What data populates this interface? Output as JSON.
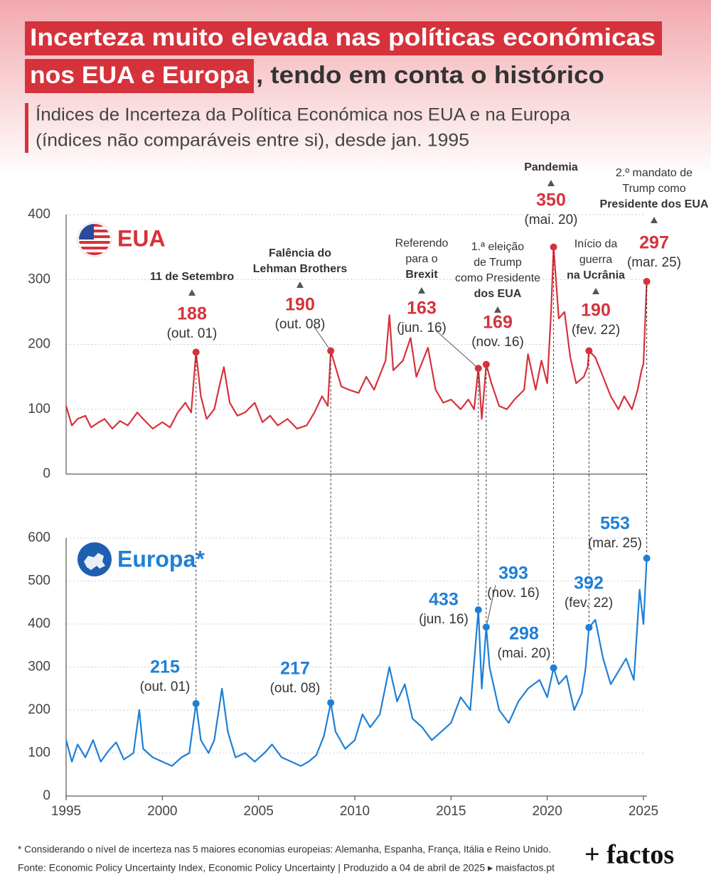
{
  "title": [
    "Incerteza muito elevada nas políticas económicas",
    "nos EUA e Europa",
    ", tendo em conta o histórico"
  ],
  "subtitle": [
    "Índices de Incerteza da Política Económica nos EUA e na Europa",
    "(índices não comparáveis entre si), desde jan. 1995"
  ],
  "footnote": "* Considerando o nível de incerteza nas 5 maiores economias europeias: Alemanha, Espanha, França, Itália e Reino Unido.",
  "source": "Fonte: Economic Policy Uncertainty Index, Economic Policy Uncertainty | Produzido a 04 de abril de 2025 ▸ maisfactos.pt",
  "logo": "+ factos",
  "chart_data": [
    {
      "type": "line",
      "title": "EUA",
      "xlim": [
        1995,
        2025
      ],
      "ylim": [
        0,
        400
      ],
      "yticks": [
        0,
        100,
        200,
        300,
        400
      ],
      "grid": true,
      "x": [
        1995.0,
        1995.3,
        1995.6,
        1996.0,
        1996.3,
        1996.7,
        1997.0,
        1997.4,
        1997.8,
        1998.2,
        1998.7,
        1999.0,
        1999.5,
        2000.0,
        2000.4,
        2000.8,
        2001.2,
        2001.5,
        2001.75,
        2002.0,
        2002.3,
        2002.7,
        2003.0,
        2003.2,
        2003.5,
        2003.9,
        2004.3,
        2004.8,
        2005.2,
        2005.6,
        2006.0,
        2006.5,
        2007.0,
        2007.5,
        2007.9,
        2008.3,
        2008.6,
        2008.75,
        2009.0,
        2009.3,
        2009.7,
        2010.2,
        2010.6,
        2011.0,
        2011.6,
        2011.8,
        2012.0,
        2012.5,
        2012.9,
        2013.2,
        2013.8,
        2014.2,
        2014.6,
        2015.0,
        2015.5,
        2015.9,
        2016.2,
        2016.42,
        2016.6,
        2016.83,
        2017.1,
        2017.5,
        2017.9,
        2018.3,
        2018.8,
        2019.0,
        2019.4,
        2019.7,
        2020.0,
        2020.2,
        2020.33,
        2020.6,
        2020.9,
        2021.2,
        2021.5,
        2021.9,
        2022.1,
        2022.17,
        2022.5,
        2022.9,
        2023.3,
        2023.7,
        2024.0,
        2024.4,
        2024.7,
        2024.9,
        2025.0,
        2025.17
      ],
      "series": [
        {
          "name": "EUA",
          "color": "#d6323c",
          "values": [
            105,
            75,
            85,
            90,
            72,
            80,
            85,
            70,
            82,
            75,
            95,
            85,
            70,
            80,
            72,
            95,
            110,
            95,
            188,
            120,
            85,
            100,
            140,
            165,
            110,
            90,
            95,
            110,
            80,
            90,
            75,
            85,
            70,
            75,
            95,
            120,
            105,
            190,
            165,
            135,
            130,
            125,
            150,
            130,
            175,
            245,
            160,
            175,
            210,
            150,
            195,
            130,
            110,
            115,
            100,
            115,
            100,
            163,
            85,
            169,
            140,
            105,
            100,
            115,
            130,
            185,
            130,
            175,
            140,
            250,
            350,
            240,
            250,
            180,
            140,
            150,
            165,
            190,
            180,
            150,
            120,
            100,
            120,
            100,
            130,
            160,
            170,
            297
          ]
        }
      ],
      "annotations": [
        {
          "x": 2001.75,
          "value": 188,
          "date": "(out. 01)",
          "event": [
            "11 de Setembro"
          ]
        },
        {
          "x": 2008.75,
          "value": 190,
          "date": "(out. 08)",
          "event": [
            "Falência do",
            "Lehman Brothers"
          ]
        },
        {
          "x": 2016.42,
          "value": 163,
          "date": "(jun. 16)",
          "event": [
            "Referendo",
            "para o",
            "Brexit"
          ]
        },
        {
          "x": 2016.83,
          "value": 169,
          "date": "(nov. 16)",
          "event": [
            "1.ª eleição",
            "de Trump",
            "como Presidente",
            "dos EUA"
          ]
        },
        {
          "x": 2020.33,
          "value": 350,
          "date": "(mai. 20)",
          "event": [
            "Pandemia"
          ]
        },
        {
          "x": 2022.17,
          "value": 190,
          "date": "(fev. 22)",
          "event": [
            "Início da",
            "guerra",
            "na Ucrânia"
          ]
        },
        {
          "x": 2025.17,
          "value": 297,
          "date": "(mar. 25)",
          "event": [
            "2.º mandato de",
            "Trump como",
            "Presidente dos EUA"
          ]
        }
      ]
    },
    {
      "type": "line",
      "title": "Europa*",
      "xlim": [
        1995,
        2025
      ],
      "xticks": [
        1995,
        2000,
        2005,
        2010,
        2015,
        2020,
        2025
      ],
      "ylim": [
        0,
        600
      ],
      "yticks": [
        0,
        100,
        200,
        300,
        400,
        500,
        600
      ],
      "grid": true,
      "x": [
        1995.0,
        1995.3,
        1995.6,
        1996.0,
        1996.4,
        1996.8,
        1997.2,
        1997.6,
        1998.0,
        1998.5,
        1998.8,
        1999.0,
        1999.5,
        2000.0,
        2000.5,
        2001.0,
        2001.4,
        2001.75,
        2002.0,
        2002.4,
        2002.7,
        2003.1,
        2003.4,
        2003.8,
        2004.3,
        2004.8,
        2005.3,
        2005.7,
        2006.2,
        2006.7,
        2007.2,
        2007.6,
        2008.0,
        2008.4,
        2008.75,
        2009.0,
        2009.5,
        2010.0,
        2010.4,
        2010.8,
        2011.3,
        2011.8,
        2012.2,
        2012.6,
        2013.0,
        2013.5,
        2014.0,
        2014.5,
        2015.0,
        2015.5,
        2016.0,
        2016.42,
        2016.6,
        2016.83,
        2017.0,
        2017.5,
        2018.0,
        2018.5,
        2019.0,
        2019.6,
        2020.0,
        2020.33,
        2020.6,
        2021.0,
        2021.4,
        2021.8,
        2022.0,
        2022.17,
        2022.5,
        2022.9,
        2023.3,
        2023.7,
        2024.1,
        2024.5,
        2024.8,
        2025.0,
        2025.17
      ],
      "series": [
        {
          "name": "Europa*",
          "color": "#1f7fd6",
          "values": [
            130,
            80,
            120,
            90,
            130,
            80,
            105,
            125,
            85,
            100,
            200,
            110,
            90,
            80,
            70,
            90,
            100,
            215,
            130,
            100,
            130,
            250,
            150,
            90,
            100,
            80,
            100,
            120,
            90,
            80,
            70,
            80,
            95,
            140,
            217,
            150,
            110,
            130,
            190,
            160,
            190,
            300,
            220,
            260,
            180,
            160,
            130,
            150,
            170,
            230,
            200,
            433,
            250,
            393,
            300,
            200,
            170,
            220,
            250,
            270,
            230,
            298,
            260,
            280,
            200,
            240,
            300,
            392,
            410,
            320,
            260,
            290,
            320,
            270,
            480,
            400,
            553
          ]
        }
      ],
      "annotations": [
        {
          "x": 2001.75,
          "value": 215,
          "date": "(out. 01)"
        },
        {
          "x": 2008.75,
          "value": 217,
          "date": "(out. 08)"
        },
        {
          "x": 2016.42,
          "value": 433,
          "date": "(jun. 16)"
        },
        {
          "x": 2016.83,
          "value": 393,
          "date": "(nov. 16)"
        },
        {
          "x": 2020.33,
          "value": 298,
          "date": "(mai. 20)"
        },
        {
          "x": 2022.17,
          "value": 392,
          "date": "(fev. 22)"
        },
        {
          "x": 2025.17,
          "value": 553,
          "date": "(mar. 25)"
        }
      ]
    }
  ]
}
